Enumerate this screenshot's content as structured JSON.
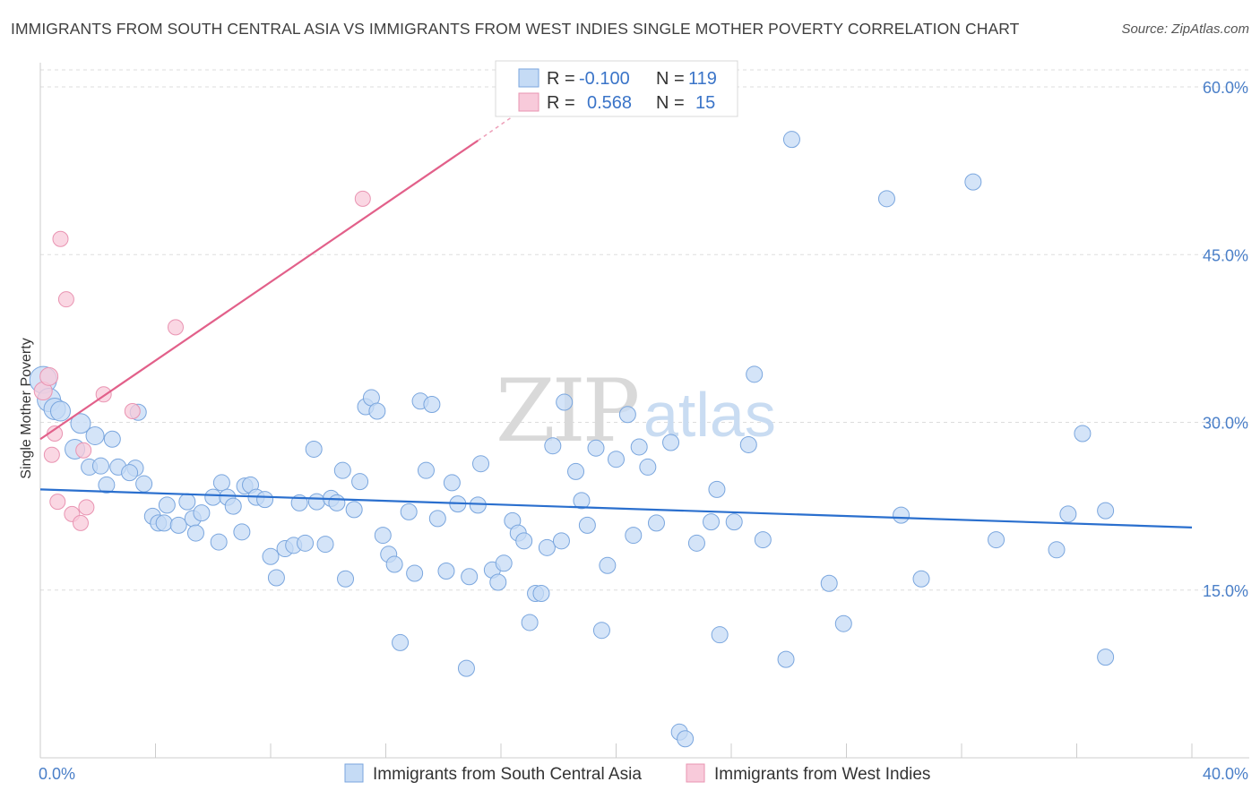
{
  "title": "IMMIGRANTS FROM SOUTH CENTRAL ASIA VS IMMIGRANTS FROM WEST INDIES SINGLE MOTHER POVERTY CORRELATION CHART",
  "source": "Source: ZipAtlas.com",
  "watermark": {
    "part1": "ZIP",
    "part2": "atlas"
  },
  "colors": {
    "blue_fill": "#c5dbf5",
    "blue_stroke": "#7aa6de",
    "blue_line": "#2a6fce",
    "pink_fill": "#f8cada",
    "pink_stroke": "#e994b2",
    "pink_line": "#e2608a",
    "axis_text": "#4a7fc8",
    "grid": "#dddddd"
  },
  "legend": {
    "row1": {
      "r_label": "R =",
      "r_value": "-0.100",
      "n_label": "N =",
      "n_value": "119"
    },
    "row2": {
      "r_label": "R =",
      "r_value": "0.568",
      "n_label": "N =",
      "n_value": "15"
    }
  },
  "bottom_legend": {
    "series1": "Immigrants from South Central Asia",
    "series2": "Immigrants from West Indies"
  },
  "chart_data": {
    "type": "scatter",
    "title": "IMMIGRANTS FROM SOUTH CENTRAL ASIA VS IMMIGRANTS FROM WEST INDIES SINGLE MOTHER POVERTY CORRELATION CHART",
    "xlabel": "",
    "ylabel": "Single Mother Poverty",
    "xlim": [
      0,
      40
    ],
    "ylim": [
      0,
      61.5
    ],
    "x_ticks": [
      "0.0%",
      "40.0%"
    ],
    "y_ticks": [
      {
        "value": 15,
        "label": "15.0%"
      },
      {
        "value": 30,
        "label": "30.0%"
      },
      {
        "value": 45,
        "label": "45.0%"
      },
      {
        "value": 60,
        "label": "60.0%"
      }
    ],
    "grid": "horizontal dashed",
    "legend_position": "top-center",
    "series": [
      {
        "name": "Immigrants from South Central Asia",
        "color": "#7aa6de",
        "r": -0.1,
        "n": 119,
        "trend": {
          "x": [
            0,
            40
          ],
          "y": [
            24.0,
            20.6
          ]
        },
        "points": [
          [
            0.1,
            33.8
          ],
          [
            0.3,
            32.0
          ],
          [
            0.5,
            31.2
          ],
          [
            0.7,
            31.0
          ],
          [
            1.4,
            29.9
          ],
          [
            1.2,
            27.6
          ],
          [
            1.9,
            28.8
          ],
          [
            2.5,
            28.5
          ],
          [
            1.7,
            26.0
          ],
          [
            2.7,
            26.0
          ],
          [
            2.1,
            26.1
          ],
          [
            3.3,
            25.9
          ],
          [
            3.1,
            25.5
          ],
          [
            2.3,
            24.4
          ],
          [
            3.6,
            24.5
          ],
          [
            3.4,
            30.9
          ],
          [
            3.9,
            21.6
          ],
          [
            4.1,
            21.0
          ],
          [
            4.4,
            22.6
          ],
          [
            4.3,
            21.0
          ],
          [
            4.8,
            20.8
          ],
          [
            5.1,
            22.9
          ],
          [
            5.3,
            21.4
          ],
          [
            5.6,
            21.9
          ],
          [
            5.4,
            20.1
          ],
          [
            6.0,
            23.3
          ],
          [
            6.2,
            19.3
          ],
          [
            6.3,
            24.6
          ],
          [
            6.5,
            23.3
          ],
          [
            6.7,
            22.5
          ],
          [
            7.0,
            20.2
          ],
          [
            7.1,
            24.3
          ],
          [
            7.3,
            24.4
          ],
          [
            7.5,
            23.3
          ],
          [
            7.8,
            23.1
          ],
          [
            8.0,
            18.0
          ],
          [
            8.2,
            16.1
          ],
          [
            8.5,
            18.7
          ],
          [
            8.8,
            19.0
          ],
          [
            9.0,
            22.8
          ],
          [
            9.2,
            19.2
          ],
          [
            9.5,
            27.6
          ],
          [
            9.6,
            22.9
          ],
          [
            9.9,
            19.1
          ],
          [
            10.1,
            23.2
          ],
          [
            10.3,
            22.8
          ],
          [
            10.5,
            25.7
          ],
          [
            10.6,
            16.0
          ],
          [
            10.9,
            22.2
          ],
          [
            11.1,
            24.7
          ],
          [
            11.3,
            31.4
          ],
          [
            11.5,
            32.2
          ],
          [
            11.7,
            31.0
          ],
          [
            11.9,
            19.9
          ],
          [
            12.1,
            18.2
          ],
          [
            12.3,
            17.3
          ],
          [
            12.5,
            10.3
          ],
          [
            12.8,
            22.0
          ],
          [
            13.0,
            16.5
          ],
          [
            13.2,
            31.9
          ],
          [
            13.6,
            31.6
          ],
          [
            13.4,
            25.7
          ],
          [
            13.8,
            21.4
          ],
          [
            14.1,
            16.7
          ],
          [
            14.3,
            24.6
          ],
          [
            14.5,
            22.7
          ],
          [
            14.8,
            8.0
          ],
          [
            14.9,
            16.2
          ],
          [
            15.2,
            22.6
          ],
          [
            15.3,
            26.3
          ],
          [
            15.7,
            16.8
          ],
          [
            15.9,
            15.7
          ],
          [
            16.1,
            17.4
          ],
          [
            16.4,
            21.2
          ],
          [
            16.6,
            20.1
          ],
          [
            16.8,
            19.4
          ],
          [
            17.0,
            12.1
          ],
          [
            17.2,
            14.7
          ],
          [
            17.4,
            14.7
          ],
          [
            17.6,
            18.8
          ],
          [
            17.8,
            27.9
          ],
          [
            18.1,
            19.4
          ],
          [
            18.2,
            31.8
          ],
          [
            18.6,
            25.6
          ],
          [
            18.8,
            23.0
          ],
          [
            19.0,
            20.8
          ],
          [
            19.3,
            27.7
          ],
          [
            19.5,
            11.4
          ],
          [
            19.7,
            17.2
          ],
          [
            20.0,
            26.7
          ],
          [
            20.4,
            30.7
          ],
          [
            20.6,
            19.9
          ],
          [
            20.8,
            27.8
          ],
          [
            21.1,
            26.0
          ],
          [
            21.4,
            21.0
          ],
          [
            21.9,
            28.2
          ],
          [
            22.2,
            2.3
          ],
          [
            22.4,
            1.7
          ],
          [
            22.8,
            19.2
          ],
          [
            23.3,
            21.1
          ],
          [
            23.5,
            24.0
          ],
          [
            23.6,
            11.0
          ],
          [
            24.1,
            21.1
          ],
          [
            24.6,
            28.0
          ],
          [
            24.8,
            34.3
          ],
          [
            25.1,
            19.5
          ],
          [
            25.9,
            8.8
          ],
          [
            26.1,
            55.3
          ],
          [
            27.4,
            15.6
          ],
          [
            27.9,
            12.0
          ],
          [
            29.4,
            50.0
          ],
          [
            29.9,
            21.7
          ],
          [
            30.6,
            16.0
          ],
          [
            32.4,
            51.5
          ],
          [
            33.2,
            19.5
          ],
          [
            35.3,
            18.6
          ],
          [
            35.7,
            21.8
          ],
          [
            36.2,
            29.0
          ],
          [
            37.0,
            22.1
          ],
          [
            37.0,
            9.0
          ]
        ]
      },
      {
        "name": "Immigrants from West Indies",
        "color": "#e994b2",
        "r": 0.568,
        "n": 15,
        "trend": {
          "x": [
            0,
            15.2
          ],
          "y": [
            28.5,
            55.2
          ],
          "dash_to": {
            "x": 16.6,
            "y": 57.7
          }
        },
        "points": [
          [
            0.1,
            32.8
          ],
          [
            0.3,
            34.1
          ],
          [
            0.4,
            27.1
          ],
          [
            0.5,
            29.0
          ],
          [
            0.6,
            22.9
          ],
          [
            0.7,
            46.4
          ],
          [
            0.9,
            41.0
          ],
          [
            1.1,
            21.8
          ],
          [
            1.4,
            21.0
          ],
          [
            1.6,
            22.4
          ],
          [
            1.5,
            27.5
          ],
          [
            2.2,
            32.5
          ],
          [
            3.2,
            31.0
          ],
          [
            4.7,
            38.5
          ],
          [
            11.2,
            50.0
          ]
        ]
      }
    ]
  }
}
